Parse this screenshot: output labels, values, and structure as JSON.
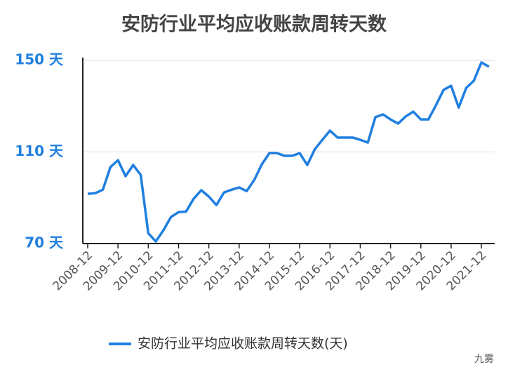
{
  "chart_data": {
    "type": "line",
    "title": "安防行业平均应收账款周转天数",
    "categories": [
      "2008-12",
      null,
      null,
      null,
      "2009-12",
      null,
      null,
      null,
      "2010-12",
      null,
      null,
      null,
      "2011-12",
      null,
      null,
      null,
      "2012-12",
      null,
      null,
      null,
      "2013-12",
      null,
      null,
      null,
      "2014-12",
      null,
      null,
      null,
      "2015-12",
      null,
      null,
      null,
      "2016-12",
      null,
      null,
      null,
      "2017-12",
      null,
      null,
      null,
      "2018-12",
      null,
      null,
      null,
      "2019-12",
      null,
      null,
      null,
      "2020-12",
      null,
      null,
      null,
      "2021-12",
      null
    ],
    "series": [
      {
        "name": "安防行业平均应收账款周转天数(天)",
        "color": "#1f7fe0",
        "values": [
          91.7,
          92,
          93.5,
          103.4,
          106.4,
          99.4,
          104.3,
          100,
          74.5,
          70.9,
          75.8,
          81.6,
          83.7,
          84,
          89.6,
          93.3,
          90.5,
          86.8,
          92.3,
          93.5,
          94.5,
          92.9,
          97.8,
          104.6,
          109.5,
          109.5,
          108.3,
          108.3,
          109.5,
          104.3,
          111.2,
          115.3,
          119.3,
          116.3,
          116.3,
          116.3,
          115.3,
          114.1,
          125.2,
          126.4,
          124.2,
          122.4,
          125.5,
          127.6,
          124.2,
          124.2,
          130.4,
          137.1,
          138.9,
          129.4,
          138,
          141.1,
          149.1,
          147.2
        ]
      }
    ],
    "ylim": [
      70,
      150
    ],
    "yticks": [
      {
        "value": 70,
        "label": "70 天"
      },
      {
        "value": 110,
        "label": "110 天"
      },
      {
        "value": 150,
        "label": "150 天"
      }
    ],
    "grid": true,
    "legend": "bottom",
    "watermark": "九雾"
  }
}
